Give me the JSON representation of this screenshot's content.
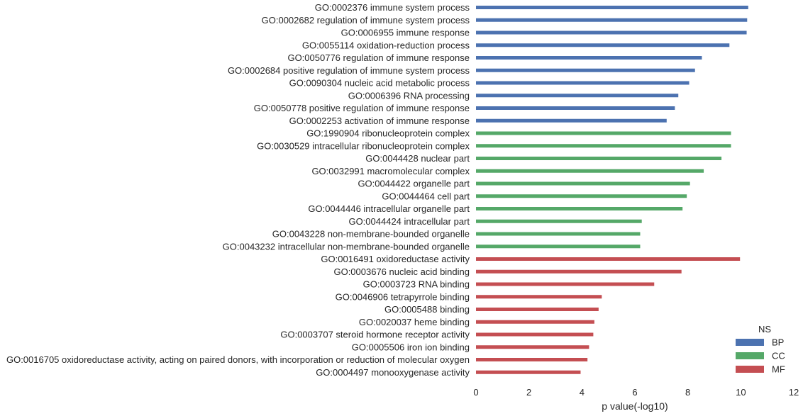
{
  "chart_data": {
    "type": "bar",
    "orientation": "horizontal",
    "title": "",
    "xlabel": "p value(-log10)",
    "ylabel": "",
    "xlim": [
      0,
      12
    ],
    "xticks": [
      0,
      2,
      4,
      6,
      8,
      10,
      12
    ],
    "grid": false,
    "legend": {
      "title": "NS",
      "placement": "bottom-right",
      "entries": [
        {
          "name": "BP",
          "color": "#4c72b0"
        },
        {
          "name": "CC",
          "color": "#55a868"
        },
        {
          "name": "MF",
          "color": "#c44e52"
        }
      ]
    },
    "categories": [
      "GO:0002376 immune system process",
      "GO:0002682 regulation of immune system process",
      "GO:0006955 immune response",
      "GO:0055114 oxidation-reduction process",
      "GO:0050776 regulation of immune response",
      "GO:0002684 positive regulation of immune system process",
      "GO:0090304 nucleic acid metabolic process",
      "GO:0006396 RNA processing",
      "GO:0050778 positive regulation of immune response",
      "GO:0002253 activation of immune response",
      "GO:1990904 ribonucleoprotein complex",
      "GO:0030529 intracellular ribonucleoprotein complex",
      "GO:0044428 nuclear part",
      "GO:0032991 macromolecular complex",
      "GO:0044422 organelle part",
      "GO:0044464 cell part",
      "GO:0044446 intracellular organelle part",
      "GO:0044424 intracellular part",
      "GO:0043228 non-membrane-bounded organelle",
      "GO:0043232 intracellular non-membrane-bounded organelle",
      "GO:0016491 oxidoreductase activity",
      "GO:0003676 nucleic acid binding",
      "GO:0003723 RNA binding",
      "GO:0046906 tetrapyrrole binding",
      "GO:0005488 binding",
      "GO:0020037 heme binding",
      "GO:0003707 steroid hormone receptor activity",
      "GO:0005506 iron ion binding",
      "GO:0016705 oxidoreductase activity, acting on paired donors, with incorporation or reduction of molecular oxygen",
      "GO:0004497 monooxygenase activity"
    ],
    "values": [
      10.28,
      10.24,
      10.22,
      9.57,
      8.53,
      8.27,
      8.05,
      7.64,
      7.51,
      7.2,
      9.63,
      9.63,
      9.27,
      8.6,
      8.08,
      7.96,
      7.8,
      6.26,
      6.2,
      6.2,
      9.97,
      7.76,
      6.73,
      4.75,
      4.63,
      4.47,
      4.43,
      4.27,
      4.21,
      3.95
    ],
    "groups": [
      "BP",
      "BP",
      "BP",
      "BP",
      "BP",
      "BP",
      "BP",
      "BP",
      "BP",
      "BP",
      "CC",
      "CC",
      "CC",
      "CC",
      "CC",
      "CC",
      "CC",
      "CC",
      "CC",
      "CC",
      "MF",
      "MF",
      "MF",
      "MF",
      "MF",
      "MF",
      "MF",
      "MF",
      "MF",
      "MF"
    ]
  }
}
